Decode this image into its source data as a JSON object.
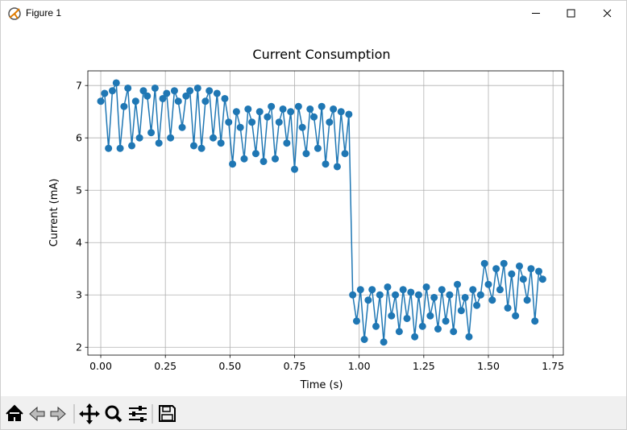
{
  "window": {
    "title": "Figure 1"
  },
  "chart_data": {
    "type": "line",
    "title": "Current Consumption",
    "xlabel": "Time (s)",
    "ylabel": "Current (mA)",
    "color": "#1f77b4",
    "grid": true,
    "xlim": [
      -0.05,
      1.79
    ],
    "ylim": [
      1.85,
      7.28
    ],
    "xticks": [
      {
        "value": 0,
        "label": "0.00"
      },
      {
        "value": 0.25,
        "label": "0.25"
      },
      {
        "value": 0.5,
        "label": "0.50"
      },
      {
        "value": 0.75,
        "label": "0.75"
      },
      {
        "value": 1,
        "label": "1.00"
      },
      {
        "value": 1.25,
        "label": "1.25"
      },
      {
        "value": 1.5,
        "label": "1.50"
      },
      {
        "value": 1.75,
        "label": "1.75"
      }
    ],
    "yticks": [
      2,
      3,
      4,
      5,
      6,
      7
    ],
    "x": [
      0,
      0.015,
      0.03,
      0.045,
      0.06,
      0.075,
      0.09,
      0.105,
      0.12,
      0.135,
      0.15,
      0.165,
      0.18,
      0.195,
      0.21,
      0.225,
      0.24,
      0.255,
      0.27,
      0.285,
      0.3,
      0.315,
      0.33,
      0.345,
      0.36,
      0.375,
      0.39,
      0.405,
      0.42,
      0.435,
      0.45,
      0.465,
      0.48,
      0.495,
      0.51,
      0.525,
      0.54,
      0.555,
      0.57,
      0.585,
      0.6,
      0.615,
      0.63,
      0.645,
      0.66,
      0.675,
      0.69,
      0.705,
      0.72,
      0.735,
      0.75,
      0.765,
      0.78,
      0.795,
      0.81,
      0.825,
      0.84,
      0.855,
      0.87,
      0.885,
      0.9,
      0.915,
      0.93,
      0.945,
      0.96,
      0.975,
      0.99,
      1.005,
      1.02,
      1.035,
      1.05,
      1.065,
      1.08,
      1.095,
      1.11,
      1.125,
      1.14,
      1.155,
      1.17,
      1.185,
      1.2,
      1.215,
      1.23,
      1.245,
      1.26,
      1.275,
      1.29,
      1.305,
      1.32,
      1.335,
      1.35,
      1.365,
      1.38,
      1.395,
      1.41,
      1.425,
      1.44,
      1.455,
      1.47,
      1.485,
      1.5,
      1.515,
      1.53,
      1.545,
      1.56,
      1.575,
      1.59,
      1.605,
      1.62,
      1.635,
      1.65,
      1.665,
      1.68,
      1.695,
      1.71
    ],
    "values": [
      6.7,
      6.85,
      5.8,
      6.9,
      7.05,
      5.8,
      6.6,
      6.95,
      5.85,
      6.7,
      6.0,
      6.9,
      6.8,
      6.1,
      6.95,
      5.9,
      6.75,
      6.85,
      6.0,
      6.9,
      6.7,
      6.2,
      6.8,
      6.9,
      5.85,
      6.95,
      5.8,
      6.7,
      6.9,
      6.0,
      6.85,
      5.9,
      6.75,
      6.3,
      5.5,
      6.5,
      6.2,
      5.6,
      6.55,
      6.3,
      5.7,
      6.5,
      5.55,
      6.4,
      6.6,
      5.6,
      6.3,
      6.55,
      5.9,
      6.5,
      5.4,
      6.6,
      6.2,
      5.7,
      6.55,
      6.4,
      5.8,
      6.6,
      5.5,
      6.3,
      6.55,
      5.45,
      6.5,
      5.7,
      6.45,
      3.0,
      2.5,
      3.1,
      2.15,
      2.9,
      3.1,
      2.4,
      3.0,
      2.1,
      3.15,
      2.6,
      3.0,
      2.3,
      3.1,
      2.55,
      3.05,
      2.2,
      3.0,
      2.4,
      3.15,
      2.6,
      2.95,
      2.35,
      3.1,
      2.5,
      3.0,
      2.3,
      3.2,
      2.7,
      2.95,
      2.2,
      3.1,
      2.8,
      3.0,
      3.6,
      3.2,
      2.9,
      3.5,
      3.1,
      3.6,
      2.75,
      3.4,
      2.6,
      3.55,
      3.3,
      2.9,
      3.5,
      2.5,
      3.45,
      3.3
    ]
  }
}
